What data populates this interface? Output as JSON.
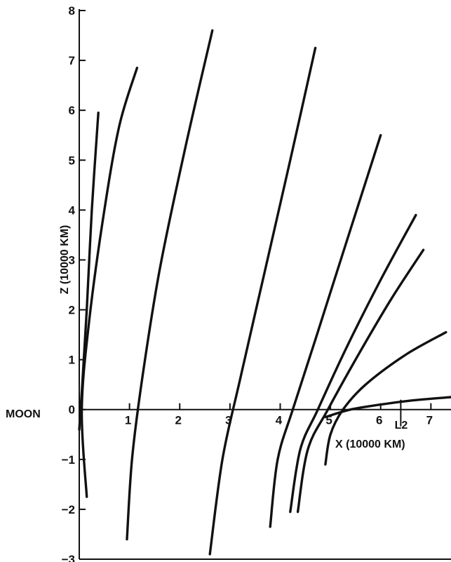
{
  "chart_data": {
    "type": "line",
    "title": "",
    "xlabel": "X (10000 KM)",
    "ylabel": "Z (10000 KM)",
    "xlim": [
      0,
      7.4
    ],
    "ylim": [
      -3,
      8
    ],
    "x_ticks": [
      1,
      2,
      3,
      4,
      5,
      6,
      7
    ],
    "y_ticks": [
      -3,
      -2,
      -1,
      0,
      1,
      2,
      3,
      4,
      5,
      6,
      7,
      8
    ],
    "grid": false,
    "legend": "none",
    "annotations": [
      {
        "text": "MOON",
        "x": 0,
        "y": 0
      },
      {
        "text": "L2",
        "x": 6.4,
        "y": 0
      }
    ],
    "line_color": "#111111",
    "series": [
      {
        "x": [
          0.0,
          0.06,
          0.15,
          0.25,
          0.38
        ],
        "y": [
          -0.4,
          0.5,
          2.0,
          4.0,
          5.95
        ]
      },
      {
        "x": [
          0.15,
          0.05,
          0.2,
          0.5,
          0.8,
          1.15
        ],
        "y": [
          -1.75,
          0.0,
          1.8,
          4.0,
          5.7,
          6.85
        ]
      },
      {
        "x": [
          0.95,
          1.05,
          1.25,
          1.6,
          2.1,
          2.65
        ],
        "y": [
          -2.6,
          -1.0,
          0.6,
          2.8,
          5.2,
          7.6
        ]
      },
      {
        "x": [
          2.6,
          2.85,
          3.2,
          3.7,
          4.2,
          4.7
        ],
        "y": [
          -2.9,
          -1.0,
          0.6,
          2.8,
          5.0,
          7.25
        ]
      },
      {
        "x": [
          3.8,
          3.95,
          4.25,
          4.7,
          5.3,
          6.0
        ],
        "y": [
          -2.35,
          -1.0,
          0.0,
          1.4,
          3.3,
          5.5
        ]
      },
      {
        "x": [
          4.2,
          4.4,
          4.75,
          5.3,
          6.0,
          6.7
        ],
        "y": [
          -2.05,
          -0.8,
          0.0,
          1.2,
          2.6,
          3.9
        ]
      },
      {
        "x": [
          4.35,
          4.55,
          4.95,
          5.5,
          6.2,
          6.85
        ],
        "y": [
          -2.05,
          -0.8,
          0.0,
          1.0,
          2.2,
          3.2
        ]
      },
      {
        "x": [
          4.9,
          5.0,
          5.25,
          5.7,
          6.5,
          7.3
        ],
        "y": [
          -1.1,
          -0.5,
          0.0,
          0.5,
          1.1,
          1.55
        ]
      },
      {
        "x": [
          4.9,
          5.4,
          6.0,
          6.6,
          7.4
        ],
        "y": [
          -0.15,
          0.0,
          0.1,
          0.18,
          0.25
        ]
      }
    ]
  }
}
